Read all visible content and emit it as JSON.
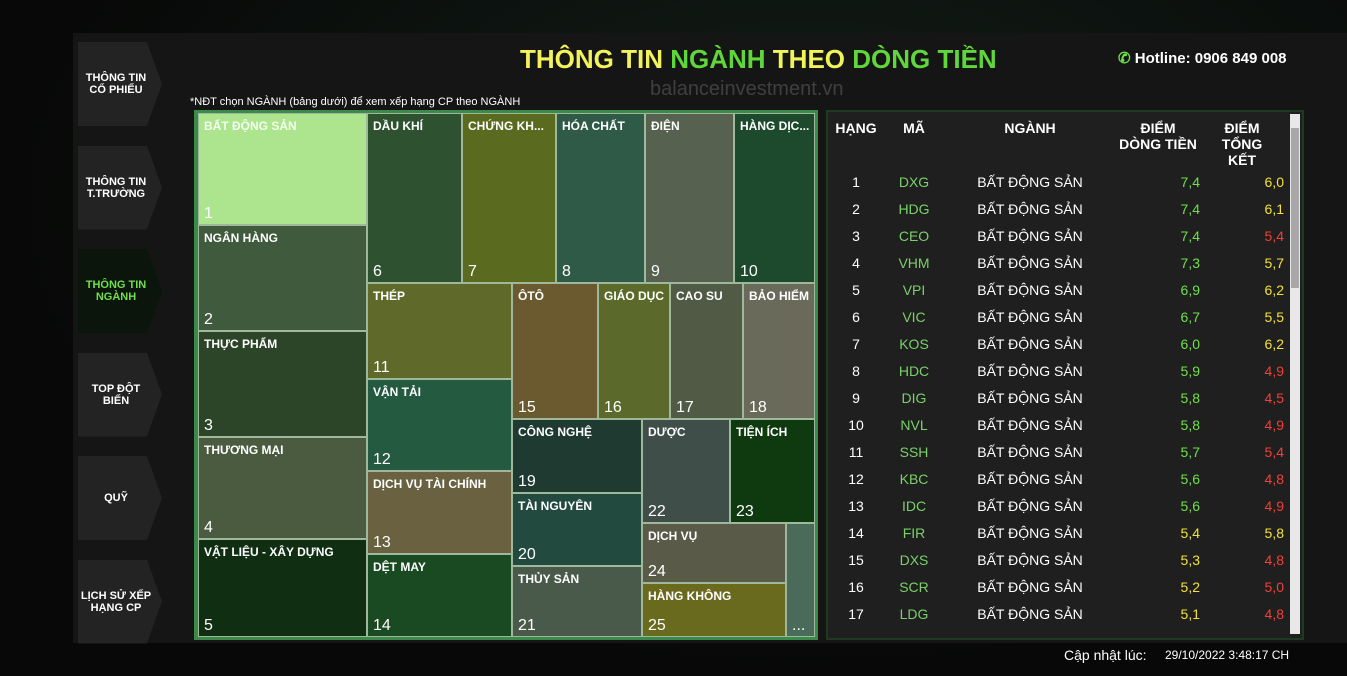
{
  "nav": [
    "THÔNG TIN\nCỔ PHIẾU",
    "THÔNG TIN\nT.TRƯỜNG",
    "THÔNG TIN\nNGÀNH",
    "TOP ĐỘT\nBIẾN",
    "QUỸ",
    "LỊCH SỬ XẾP\nHẠNG CP"
  ],
  "active_nav": 2,
  "header": {
    "title_parts": [
      "THÔNG TIN ",
      "NGÀNH ",
      "THEO ",
      "DÒNG TIỀN"
    ],
    "hotline": "Hotline: 0906 849 008",
    "watermark": "balanceinvestment.vn"
  },
  "note": "*NĐT chọn NGÀNH (bảng dưới) để xem xếp hạng CP theo NGÀNH",
  "treemap": [
    {
      "name": "BẤT ĐỘNG SẢN",
      "number": "1"
    },
    {
      "name": "NGÂN HÀNG",
      "number": "2"
    },
    {
      "name": "THỰC PHẨM",
      "number": "3"
    },
    {
      "name": "THƯƠNG MẠI",
      "number": "4"
    },
    {
      "name": "VẬT LIỆU - XÂY DỰNG",
      "number": "5"
    },
    {
      "name": "DẦU KHÍ",
      "number": "6"
    },
    {
      "name": "CHỨNG KH...",
      "number": "7"
    },
    {
      "name": "HÓA CHẤT",
      "number": "8"
    },
    {
      "name": "ĐIỆN",
      "number": "9"
    },
    {
      "name": "HÀNG DỊC...",
      "number": "10"
    },
    {
      "name": "THÉP",
      "number": "11"
    },
    {
      "name": "VẬN TẢI",
      "number": "12"
    },
    {
      "name": "DỊCH VỤ TÀI CHÍNH",
      "number": "13"
    },
    {
      "name": "DỆT MAY",
      "number": "14"
    },
    {
      "name": "ÔTÔ",
      "number": "15"
    },
    {
      "name": "GIÁO DỤC",
      "number": "16"
    },
    {
      "name": "CAO SU",
      "number": "17"
    },
    {
      "name": "BẢO HIỂM",
      "number": "18"
    },
    {
      "name": "CÔNG NGHỆ",
      "number": "19"
    },
    {
      "name": "TÀI NGUYÊN",
      "number": "20"
    },
    {
      "name": "THỦY SẢN",
      "number": "21"
    },
    {
      "name": "DƯỢC",
      "number": "22"
    },
    {
      "name": "TIỆN ÍCH",
      "number": "23"
    },
    {
      "name": "DỊCH VỤ",
      "number": "24"
    },
    {
      "name": "HÀNG KHÔNG",
      "number": "25"
    },
    {
      "number": "..."
    }
  ],
  "table": {
    "headers": [
      "HẠNG",
      "MÃ",
      "NGÀNH",
      "ĐIỂM\nDÒNG TIỀN",
      "ĐIỂM\nTỔNG KẾT"
    ],
    "rows": [
      [
        "1",
        "DXG",
        "BẤT ĐỘNG SẢN",
        "7,4",
        "6,0"
      ],
      [
        "2",
        "HDG",
        "BẤT ĐỘNG SẢN",
        "7,4",
        "6,1"
      ],
      [
        "3",
        "CEO",
        "BẤT ĐỘNG SẢN",
        "7,4",
        "5,4"
      ],
      [
        "4",
        "VHM",
        "BẤT ĐỘNG SẢN",
        "7,3",
        "5,7"
      ],
      [
        "5",
        "VPI",
        "BẤT ĐỘNG SẢN",
        "6,9",
        "6,2"
      ],
      [
        "6",
        "VIC",
        "BẤT ĐỘNG SẢN",
        "6,7",
        "5,5"
      ],
      [
        "7",
        "KOS",
        "BẤT ĐỘNG SẢN",
        "6,0",
        "6,2"
      ],
      [
        "8",
        "HDC",
        "BẤT ĐỘNG SẢN",
        "5,9",
        "4,9"
      ],
      [
        "9",
        "DIG",
        "BẤT ĐỘNG SẢN",
        "5,8",
        "4,5"
      ],
      [
        "10",
        "NVL",
        "BẤT ĐỘNG SẢN",
        "5,8",
        "4,9"
      ],
      [
        "11",
        "SSH",
        "BẤT ĐỘNG SẢN",
        "5,7",
        "5,4"
      ],
      [
        "12",
        "KBC",
        "BẤT ĐỘNG SẢN",
        "5,6",
        "4,8"
      ],
      [
        "13",
        "IDC",
        "BẤT ĐỘNG SẢN",
        "5,6",
        "4,9"
      ],
      [
        "14",
        "FIR",
        "BẤT ĐỘNG SẢN",
        "5,4",
        "5,8"
      ],
      [
        "15",
        "DXS",
        "BẤT ĐỘNG SẢN",
        "5,3",
        "4,8"
      ],
      [
        "16",
        "SCR",
        "BẤT ĐỘNG SẢN",
        "5,2",
        "5,0"
      ],
      [
        "17",
        "LDG",
        "BẤT ĐỘNG SẢN",
        "5,1",
        "4,8"
      ]
    ]
  },
  "footer": {
    "label": "Cập nhật lúc:",
    "time": "29/10/2022 3:48:17 CH"
  }
}
